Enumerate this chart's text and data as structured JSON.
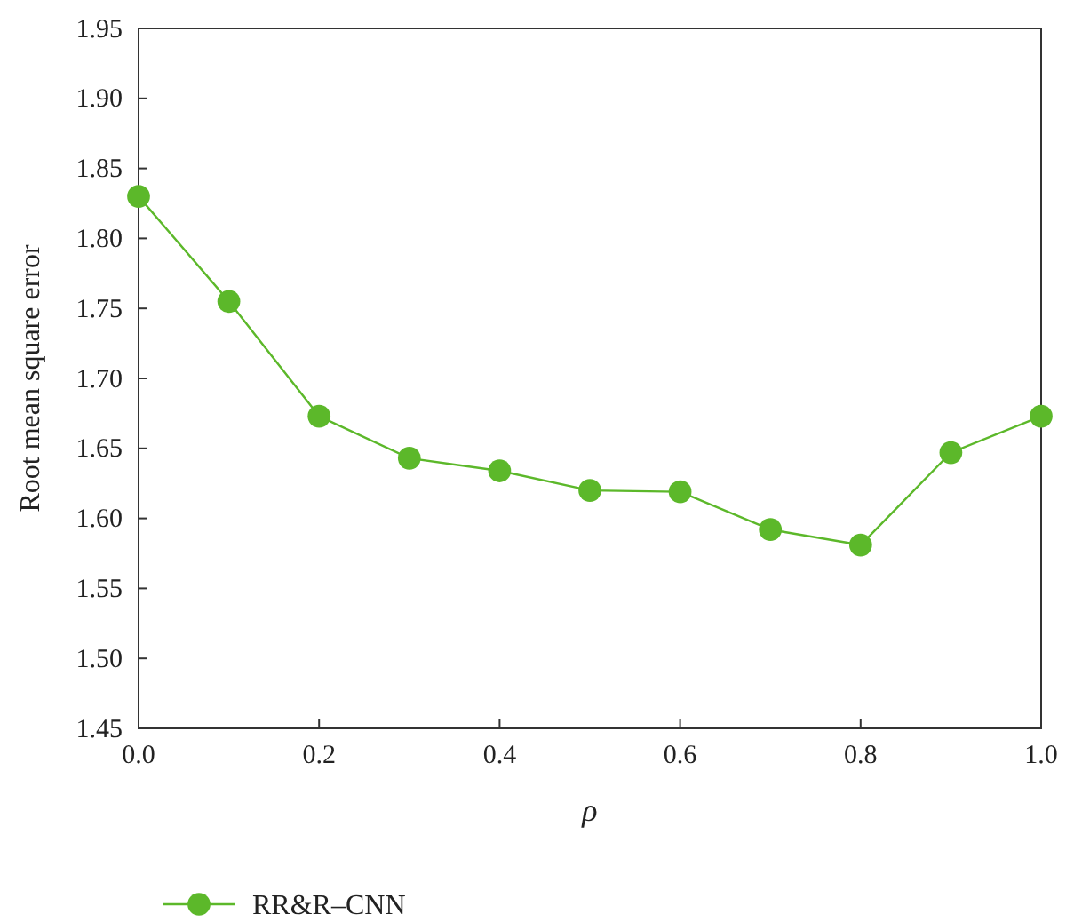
{
  "chart_data": {
    "type": "line",
    "xlabel": "ρ",
    "ylabel": "Root mean square error",
    "x": [
      0.0,
      0.1,
      0.2,
      0.3,
      0.4,
      0.5,
      0.6,
      0.7,
      0.8,
      0.9,
      1.0
    ],
    "series": [
      {
        "name": "RR&R–CNN",
        "color": "#5cb82a",
        "values": [
          1.83,
          1.755,
          1.673,
          1.643,
          1.634,
          1.62,
          1.619,
          1.592,
          1.581,
          1.647,
          1.673
        ]
      }
    ],
    "xlim": [
      0.0,
      1.0
    ],
    "xticks": [
      {
        "value": 0,
        "label": "0.0"
      },
      0.2,
      0.4,
      0.6,
      0.8,
      {
        "value": 1,
        "label": "1.0"
      }
    ],
    "ylim": [
      1.45,
      1.95
    ],
    "yticks": [
      1.45,
      {
        "value": 1.5,
        "label": "1.50"
      },
      1.55,
      {
        "value": 1.6,
        "label": "1.60"
      },
      1.65,
      {
        "value": 1.7,
        "label": "1.70"
      },
      1.75,
      {
        "value": 1.8,
        "label": "1.80"
      },
      1.85,
      {
        "value": 1.9,
        "label": "1.90"
      },
      1.95
    ],
    "marker": "circle",
    "line_style": "solid",
    "legend": "bottom left",
    "grid": false
  }
}
